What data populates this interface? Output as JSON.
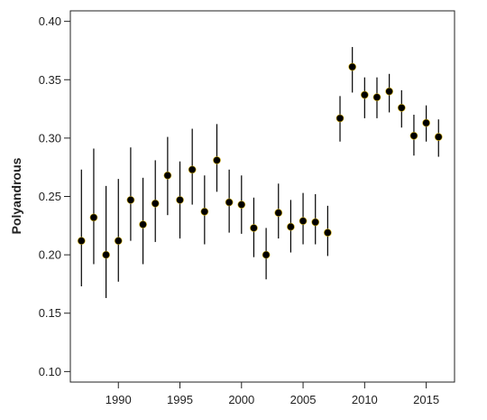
{
  "chart_data": {
    "type": "scatter",
    "title": "",
    "xlabel": "",
    "ylabel": "Polyandrous",
    "xlim": [
      1986.1,
      2017.3
    ],
    "ylim": [
      0.091,
      0.409
    ],
    "x_ticks": [
      1990,
      1995,
      2000,
      2005,
      2010,
      2015
    ],
    "y_ticks": [
      0.1,
      0.15,
      0.2,
      0.25,
      0.3,
      0.35,
      0.4
    ],
    "y_tick_labels": [
      "0.10",
      "0.15",
      "0.20",
      "0.25",
      "0.30",
      "0.35",
      "0.40"
    ],
    "grid": false,
    "legend": "none",
    "marker_color": "#000000",
    "points": [
      {
        "x": 1987,
        "y": 0.212,
        "low": 0.173,
        "high": 0.273
      },
      {
        "x": 1988,
        "y": 0.232,
        "low": 0.192,
        "high": 0.291
      },
      {
        "x": 1989,
        "y": 0.2,
        "low": 0.163,
        "high": 0.259
      },
      {
        "x": 1990,
        "y": 0.212,
        "low": 0.177,
        "high": 0.265
      },
      {
        "x": 1991,
        "y": 0.247,
        "low": 0.212,
        "high": 0.292
      },
      {
        "x": 1992,
        "y": 0.226,
        "low": 0.192,
        "high": 0.266
      },
      {
        "x": 1993,
        "y": 0.244,
        "low": 0.211,
        "high": 0.281
      },
      {
        "x": 1994,
        "y": 0.268,
        "low": 0.234,
        "high": 0.301
      },
      {
        "x": 1995,
        "y": 0.247,
        "low": 0.214,
        "high": 0.28
      },
      {
        "x": 1996,
        "y": 0.273,
        "low": 0.243,
        "high": 0.308
      },
      {
        "x": 1997,
        "y": 0.237,
        "low": 0.209,
        "high": 0.268
      },
      {
        "x": 1998,
        "y": 0.281,
        "low": 0.254,
        "high": 0.312
      },
      {
        "x": 1999,
        "y": 0.245,
        "low": 0.219,
        "high": 0.273
      },
      {
        "x": 2000,
        "y": 0.243,
        "low": 0.218,
        "high": 0.268
      },
      {
        "x": 2001,
        "y": 0.223,
        "low": 0.198,
        "high": 0.249
      },
      {
        "x": 2002,
        "y": 0.2,
        "low": 0.179,
        "high": 0.223
      },
      {
        "x": 2003,
        "y": 0.236,
        "low": 0.214,
        "high": 0.261
      },
      {
        "x": 2004,
        "y": 0.224,
        "low": 0.202,
        "high": 0.247
      },
      {
        "x": 2005,
        "y": 0.229,
        "low": 0.209,
        "high": 0.253
      },
      {
        "x": 2006,
        "y": 0.228,
        "low": 0.209,
        "high": 0.252
      },
      {
        "x": 2007,
        "y": 0.219,
        "low": 0.199,
        "high": 0.242
      },
      {
        "x": 2008,
        "y": 0.317,
        "low": 0.297,
        "high": 0.336
      },
      {
        "x": 2009,
        "y": 0.361,
        "low": 0.339,
        "high": 0.378
      },
      {
        "x": 2010,
        "y": 0.337,
        "low": 0.317,
        "high": 0.352
      },
      {
        "x": 2011,
        "y": 0.335,
        "low": 0.317,
        "high": 0.352
      },
      {
        "x": 2012,
        "y": 0.34,
        "low": 0.322,
        "high": 0.355
      },
      {
        "x": 2013,
        "y": 0.326,
        "low": 0.309,
        "high": 0.341
      },
      {
        "x": 2014,
        "y": 0.302,
        "low": 0.285,
        "high": 0.32
      },
      {
        "x": 2015,
        "y": 0.313,
        "low": 0.297,
        "high": 0.328
      },
      {
        "x": 2016,
        "y": 0.301,
        "low": 0.284,
        "high": 0.316
      }
    ]
  }
}
